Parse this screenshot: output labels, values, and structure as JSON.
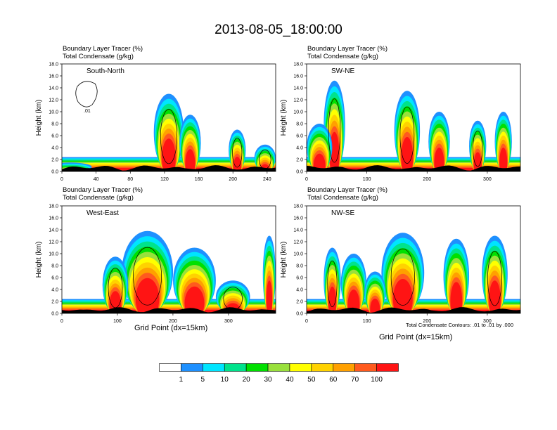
{
  "title": "2013-08-05_18:00:00",
  "panel_titles": {
    "line1": "Boundary Layer Tracer   (%)",
    "line2": "Total Condensate   (g/kg)"
  },
  "contour_note": "Total Condensate Contours: .01 to .01 by .000",
  "contour_label": ".01",
  "colorbar": {
    "colors": [
      "#ffffff",
      "#1e90ff",
      "#00e5ff",
      "#00e38c",
      "#00e000",
      "#99e03c",
      "#ffff00",
      "#ffd200",
      "#ffa000",
      "#ff5a1e",
      "#ff1414"
    ],
    "labels": [
      "1",
      "5",
      "10",
      "20",
      "30",
      "40",
      "50",
      "60",
      "70",
      "100"
    ]
  },
  "chart_data": [
    {
      "type": "heatmap",
      "panel_label": "South-North",
      "ylabel": "Height (km)",
      "xlabel": "",
      "xlim": [
        0,
        250
      ],
      "ylim": [
        0,
        18
      ],
      "xticks": [
        "0",
        "40",
        "80",
        "120",
        "160",
        "200",
        "240"
      ],
      "yticks": [
        "0.0",
        "2.0",
        "4.0",
        "6.0",
        "8.0",
        "10.0",
        "12.0",
        "14.0",
        "16.0",
        "18.0"
      ]
    },
    {
      "type": "heatmap",
      "panel_label": "SW-NE",
      "ylabel": "Height (km)",
      "xlabel": "",
      "xlim": [
        0,
        355
      ],
      "ylim": [
        0,
        18
      ],
      "xticks": [
        "0",
        "100",
        "200",
        "300"
      ],
      "yticks": [
        "0.0",
        "2.0",
        "4.0",
        "6.0",
        "8.0",
        "10.0",
        "12.0",
        "14.0",
        "16.0",
        "18.0"
      ]
    },
    {
      "type": "heatmap",
      "panel_label": "West-East",
      "ylabel": "Height (km)",
      "xlabel": "Grid Point (dx=15km)",
      "xlim": [
        0,
        385
      ],
      "ylim": [
        0,
        18
      ],
      "xticks": [
        "0",
        "100",
        "200",
        "300"
      ],
      "yticks": [
        "0.0",
        "2.0",
        "4.0",
        "6.0",
        "8.0",
        "10.0",
        "12.0",
        "14.0",
        "16.0",
        "18.0"
      ]
    },
    {
      "type": "heatmap",
      "panel_label": "NW-SE",
      "ylabel": "Height (km)",
      "xlabel": "Grid Point (dx=15km)",
      "xlim": [
        0,
        355
      ],
      "ylim": [
        0,
        18
      ],
      "xticks": [
        "0",
        "100",
        "200",
        "300"
      ],
      "yticks": [
        "0.0",
        "2.0",
        "4.0",
        "6.0",
        "8.0",
        "10.0",
        "12.0",
        "14.0",
        "16.0",
        "18.0"
      ]
    }
  ]
}
